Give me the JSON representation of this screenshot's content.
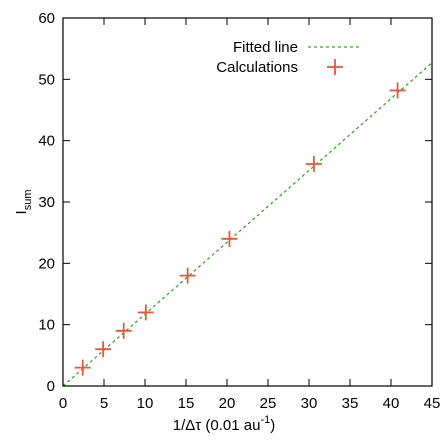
{
  "chart_data": {
    "type": "scatter",
    "xlabel": {
      "base": "1/Δτ (0.01 au",
      "sup": "-1",
      "tail": ")"
    },
    "ylabel": {
      "base": "I",
      "sub": "sum"
    },
    "xlim": [
      0,
      45
    ],
    "ylim": [
      0,
      60
    ],
    "xticks": [
      0,
      5,
      10,
      15,
      20,
      25,
      30,
      35,
      40,
      45
    ],
    "yticks": [
      0,
      10,
      20,
      30,
      40,
      50,
      60
    ],
    "grid": false,
    "legend_position": "top-right",
    "series": [
      {
        "name": "Fitted line",
        "kind": "line",
        "style": "dashed",
        "color": "#3aa32e",
        "x": [
          0,
          45
        ],
        "y": [
          0,
          52.7
        ]
      },
      {
        "name": "Calculations",
        "kind": "points",
        "marker": "plus",
        "color": "#e8553a",
        "x": [
          2.4,
          4.9,
          7.4,
          10.1,
          15.2,
          20.3,
          30.6,
          40.8
        ],
        "y": [
          3.0,
          6.0,
          9.0,
          12.0,
          18.0,
          24.0,
          36.2,
          48.2
        ]
      }
    ]
  }
}
